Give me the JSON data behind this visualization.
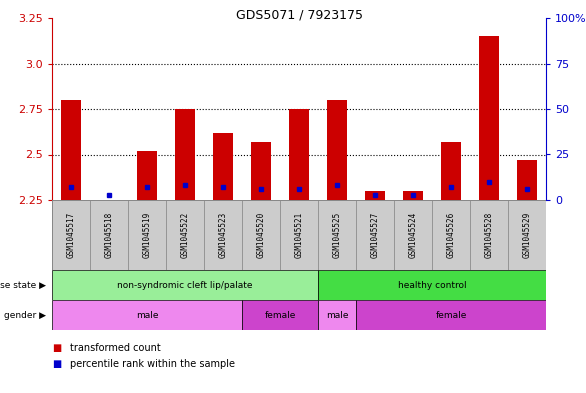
{
  "title": "GDS5071 / 7923175",
  "samples": [
    "GSM1045517",
    "GSM1045518",
    "GSM1045519",
    "GSM1045522",
    "GSM1045523",
    "GSM1045520",
    "GSM1045521",
    "GSM1045525",
    "GSM1045527",
    "GSM1045524",
    "GSM1045526",
    "GSM1045528",
    "GSM1045529"
  ],
  "transformed_count": [
    2.8,
    2.25,
    2.52,
    2.75,
    2.62,
    2.57,
    2.75,
    2.8,
    2.3,
    2.3,
    2.57,
    3.15,
    2.47
  ],
  "percentile_rank": [
    7,
    3,
    7,
    8,
    7,
    6,
    6,
    8,
    3,
    3,
    7,
    10,
    6
  ],
  "ymin": 2.25,
  "ymax": 3.25,
  "yticks_left": [
    2.25,
    2.5,
    2.75,
    3.0,
    3.25
  ],
  "yticks_right": [
    0,
    25,
    50,
    75,
    100
  ],
  "bar_color": "#cc0000",
  "blue_color": "#0000cc",
  "sample_bg": "#cccccc",
  "disease_state": [
    {
      "label": "non-syndromic cleft lip/palate",
      "start": 0,
      "end": 7,
      "color": "#99ee99"
    },
    {
      "label": "healthy control",
      "start": 7,
      "end": 13,
      "color": "#44dd44"
    }
  ],
  "gender": [
    {
      "label": "male",
      "start": 0,
      "end": 5,
      "color": "#ee88ee"
    },
    {
      "label": "female",
      "start": 5,
      "end": 7,
      "color": "#cc44cc"
    },
    {
      "label": "male",
      "start": 7,
      "end": 8,
      "color": "#ee88ee"
    },
    {
      "label": "female",
      "start": 8,
      "end": 13,
      "color": "#cc44cc"
    }
  ],
  "bg_color": "#ffffff",
  "legend": [
    {
      "label": "transformed count",
      "color": "#cc0000"
    },
    {
      "label": "percentile rank within the sample",
      "color": "#0000cc"
    }
  ],
  "grid_yticks": [
    2.5,
    2.75,
    3.0
  ]
}
